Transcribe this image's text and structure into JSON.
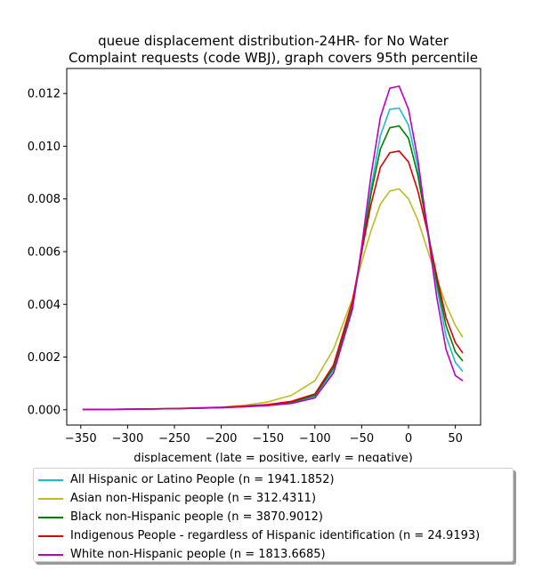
{
  "chart_data": {
    "type": "line",
    "title": "queue displacement distribution-24HR-  for No Water\nComplaint  requests (code WBJ), graph covers 95th percentile",
    "xlabel": "displacement (late = positive, early = negative)",
    "ylabel": "",
    "xlim": [
      -365,
      77
    ],
    "ylim": [
      -0.00058,
      0.01295
    ],
    "xticks": [
      -350,
      -300,
      -250,
      -200,
      -150,
      -100,
      -50,
      0,
      50
    ],
    "yticks": [
      0.0,
      0.002,
      0.004,
      0.006,
      0.008,
      0.01,
      0.012
    ],
    "ytick_labels": [
      "0.000",
      "0.002",
      "0.004",
      "0.006",
      "0.008",
      "0.010",
      "0.012"
    ],
    "grid": false,
    "legend_position": "below",
    "x": [
      -348,
      -300,
      -250,
      -200,
      -175,
      -150,
      -125,
      -100,
      -80,
      -60,
      -50,
      -40,
      -30,
      -20,
      -10,
      0,
      10,
      20,
      30,
      40,
      50,
      58
    ],
    "series": [
      {
        "name": "All Hispanic or Latino People (n = 1941.1852)",
        "color": "#17becf",
        "values": [
          1e-05,
          2e-05,
          4e-05,
          8e-05,
          0.00012,
          0.00017,
          0.00025,
          0.0005,
          0.0015,
          0.0038,
          0.006,
          0.0084,
          0.0104,
          0.0114,
          0.01145,
          0.0108,
          0.0092,
          0.007,
          0.0047,
          0.0028,
          0.0018,
          0.00145
        ]
      },
      {
        "name": "Asian non-Hispanic people (n = 312.4311)",
        "color": "#bcbd22",
        "values": [
          1e-05,
          2e-05,
          5e-05,
          0.0001,
          0.00017,
          0.0003,
          0.00055,
          0.0011,
          0.0023,
          0.0042,
          0.0056,
          0.0068,
          0.0078,
          0.0083,
          0.00838,
          0.008,
          0.0072,
          0.0061,
          0.005,
          0.004,
          0.0032,
          0.00275
        ]
      },
      {
        "name": "Black non-Hispanic people (n = 3870.9012)",
        "color": "#008000",
        "values": [
          1e-05,
          2e-05,
          4e-05,
          8e-05,
          0.00012,
          0.00018,
          0.00028,
          0.00055,
          0.0016,
          0.0039,
          0.006,
          0.0082,
          0.0099,
          0.0107,
          0.01077,
          0.0103,
          0.0089,
          0.0069,
          0.0049,
          0.0032,
          0.0022,
          0.00185
        ]
      },
      {
        "name": "Indigenous People - regardless of Hispanic identification (n = 24.9193)",
        "color": "#e00000",
        "values": [
          1e-05,
          2e-05,
          4e-05,
          9e-05,
          0.00014,
          0.0002,
          0.00032,
          0.0006,
          0.0017,
          0.0041,
          0.006,
          0.0078,
          0.0092,
          0.00975,
          0.00982,
          0.0094,
          0.0083,
          0.0068,
          0.0051,
          0.0035,
          0.00255,
          0.00215
        ]
      },
      {
        "name": "White non-Hispanic people (n = 1813.6685)",
        "color": "#bf00bf",
        "values": [
          1e-05,
          2e-05,
          4e-05,
          8e-05,
          0.00011,
          0.00016,
          0.00024,
          0.00045,
          0.0014,
          0.0038,
          0.0062,
          0.0089,
          0.0111,
          0.0122,
          0.01228,
          0.0114,
          0.0095,
          0.0069,
          0.0043,
          0.0023,
          0.0013,
          0.0011
        ]
      }
    ]
  }
}
